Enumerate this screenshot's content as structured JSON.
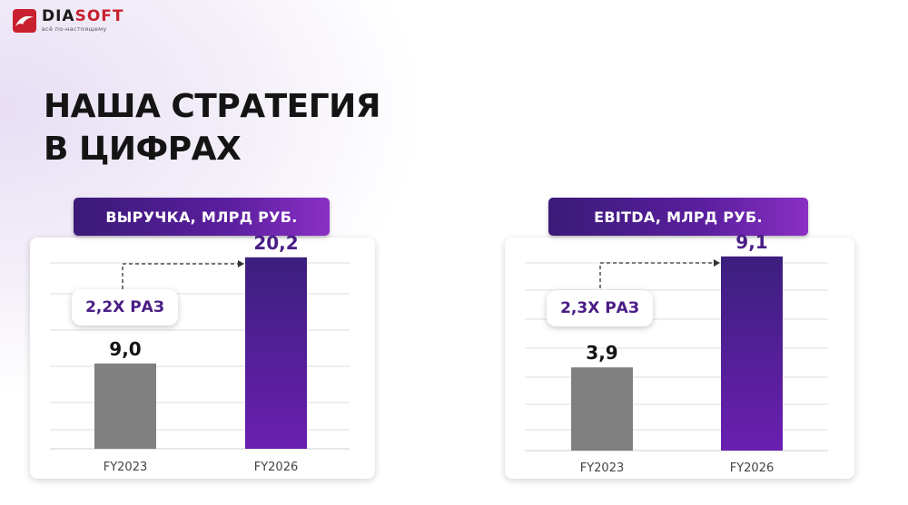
{
  "brand": {
    "name_main": "DIA",
    "name_accent": "SOFT",
    "tagline": "всё по-настоящему",
    "logo_color": "#c8202f"
  },
  "title_lines": [
    "НАША СТРАТЕГИЯ",
    "В ЦИФРАХ"
  ],
  "colors": {
    "actual_bar": "#808080",
    "target_bar_top": "#3c1f7e",
    "target_bar_bottom": "#6a1fb0",
    "header_gradient": [
      "#3b1a78",
      "#8a2fc4"
    ],
    "badge_text": "#4a1d86",
    "target_value_text": "#4a1d86"
  },
  "chart_data": [
    {
      "type": "bar",
      "title": "ВЫРУЧКА, МЛРД РУБ.",
      "categories": [
        "FY2023",
        "FY2026"
      ],
      "values": [
        9.0,
        20.2
      ],
      "value_labels": [
        "9,0",
        "20,2"
      ],
      "growth_label": "2,2Х РАЗ",
      "ylim": [
        0,
        22
      ],
      "grid": true
    },
    {
      "type": "bar",
      "title": "EBITDA, МЛРД РУБ.",
      "categories": [
        "FY2023",
        "FY2026"
      ],
      "values": [
        3.9,
        9.1
      ],
      "value_labels": [
        "3,9",
        "9,1"
      ],
      "growth_label": "2,3Х РАЗ",
      "ylim": [
        0,
        9.9
      ],
      "grid": true
    }
  ]
}
